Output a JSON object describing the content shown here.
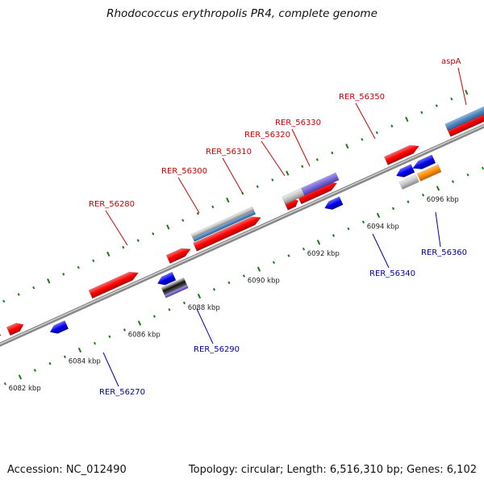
{
  "title": "Rhodococcus erythropolis PR4, complete genome",
  "footer": {
    "accession": "Accession: NC_012490",
    "topology": "Topology: circular; Length: 6,516,310 bp; Genes: 6,102"
  },
  "colors": {
    "forward_label": "#cc0000",
    "reverse_label": "#0000aa",
    "backbone": "#888888",
    "tick": "#1a7a1a",
    "forward_gene": "#ff0000",
    "reverse_gene": "#0000ee",
    "steelblue_track": "#4f86bf",
    "purple_track": "#7b68d6",
    "orange_track": "#ff8c00",
    "grey_track": "#bdbdbd"
  },
  "scale": {
    "unit": "kbp",
    "ticks": [
      {
        "kbp": 6082,
        "label": "6082 kbp"
      },
      {
        "kbp": 6084,
        "label": "6084 kbp"
      },
      {
        "kbp": 6086,
        "label": "6086 kbp"
      },
      {
        "kbp": 6088,
        "label": "6088 kbp"
      },
      {
        "kbp": 6090,
        "label": "6090 kbp"
      },
      {
        "kbp": 6092,
        "label": "6092 kbp"
      },
      {
        "kbp": 6094,
        "label": "6094 kbp"
      },
      {
        "kbp": 6096,
        "label": "6096 kbp"
      }
    ]
  },
  "gene_labels": {
    "forward": [
      "RER_56280",
      "RER_56300",
      "RER_56310",
      "RER_56320",
      "RER_56330",
      "RER_56350",
      "aspA"
    ],
    "reverse": [
      "RER_56270",
      "RER_56290",
      "RER_56340",
      "RER_56360"
    ]
  }
}
